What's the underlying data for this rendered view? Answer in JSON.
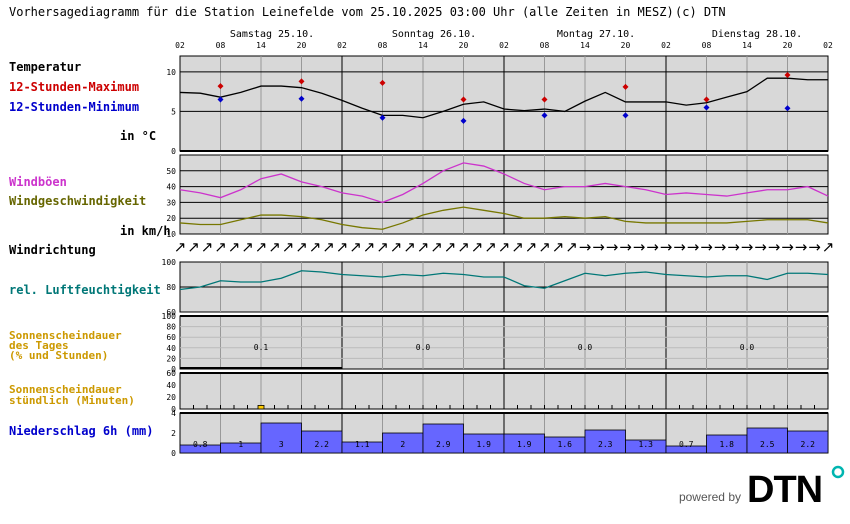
{
  "header": {
    "title": "Vorhersagediagramm für die Station Leinefelde vom 25.10.2025 03:00 Uhr (alle Zeiten in MESZ)",
    "copyright": "(c) DTN"
  },
  "days": [
    "Samstag 25.10.",
    "Sonntag 26.10.",
    "Montag 27.10.",
    "Dienstag 28.10."
  ],
  "hour_ticks": [
    "02",
    "08",
    "14",
    "20",
    "02",
    "08",
    "14",
    "20",
    "02",
    "08",
    "14",
    "20",
    "02",
    "08",
    "14",
    "20",
    "02"
  ],
  "labels": {
    "temperatur": "Temperatur",
    "tmax": "12-Stunden-Maximum",
    "tmin": "12-Stunden-Minimum",
    "temp_unit": "in °C",
    "windboeen": "Windböen",
    "windgeschw": "Windgeschwindigkeit",
    "wind_unit": "in km/h",
    "windrichtung": "Windrichtung",
    "feuchte": "rel. Luftfeuchtigkeit",
    "sonne_tag_1": "Sonnenscheindauer",
    "sonne_tag_2": "des Tages",
    "sonne_tag_3": "(% und Stunden)",
    "sonne_std_1": "Sonnenscheindauer",
    "sonne_std_2": "stündlich (Minuten)",
    "niederschlag": "Niederschlag 6h (mm)"
  },
  "footer": {
    "powered_by": "powered by",
    "brand": "DTN"
  },
  "colors": {
    "panel_bg": "#d8d8d8",
    "temp_line": "#000000",
    "max_marker": "#cc0000",
    "min_marker": "#0000cc",
    "gust_line": "#cc33cc",
    "wind_line": "#777700",
    "humidity_line": "#007777",
    "precip_bar": "#6666ff",
    "sun_bar": "#ffcc00",
    "label_blue": "#0000cc",
    "label_red": "#cc0000",
    "label_magenta": "#cc33cc",
    "label_olive": "#666600",
    "label_teal": "#007777",
    "label_orange": "#cc9900"
  },
  "chart_data": [
    {
      "name": "temperature",
      "type": "line",
      "x_unit": "hours since 25.10. 02:00",
      "ylim": [
        0,
        12
      ],
      "yticks": [
        0,
        5,
        10
      ],
      "x": [
        0,
        3,
        6,
        9,
        12,
        15,
        18,
        21,
        24,
        27,
        30,
        33,
        36,
        39,
        42,
        45,
        48,
        51,
        54,
        57,
        60,
        63,
        66,
        69,
        72,
        75,
        78,
        81,
        84,
        87,
        90,
        93,
        96
      ],
      "values": [
        7.4,
        7.3,
        6.8,
        7.4,
        8.2,
        8.2,
        8.0,
        7.3,
        6.4,
        5.4,
        4.5,
        4.5,
        4.2,
        5.0,
        5.9,
        6.2,
        5.3,
        5.1,
        5.3,
        5.0,
        6.3,
        7.4,
        6.2,
        6.2,
        6.2,
        5.8,
        6.1,
        6.8,
        7.5,
        9.2,
        9.2,
        9.0,
        9.0
      ],
      "max": {
        "x": [
          6,
          18,
          30,
          42,
          54,
          66,
          78,
          90
        ],
        "values": [
          8.2,
          8.8,
          8.6,
          6.5,
          6.5,
          8.1,
          6.5,
          9.6
        ]
      },
      "min": {
        "x": [
          6,
          18,
          30,
          42,
          54,
          66,
          78,
          90
        ],
        "values": [
          6.5,
          6.6,
          4.2,
          3.8,
          4.5,
          4.5,
          5.5,
          5.4
        ]
      }
    },
    {
      "name": "wind",
      "type": "line",
      "ylim": [
        10,
        60
      ],
      "yticks": [
        10,
        20,
        30,
        40,
        50
      ],
      "x": [
        0,
        3,
        6,
        9,
        12,
        15,
        18,
        21,
        24,
        27,
        30,
        33,
        36,
        39,
        42,
        45,
        48,
        51,
        54,
        57,
        60,
        63,
        66,
        69,
        72,
        75,
        78,
        81,
        84,
        87,
        90,
        93,
        96
      ],
      "series": [
        {
          "name": "Windböen",
          "values": [
            38,
            36,
            33,
            38,
            45,
            48,
            43,
            40,
            36,
            34,
            30,
            35,
            42,
            50,
            55,
            53,
            48,
            42,
            38,
            40,
            40,
            42,
            40,
            38,
            35,
            36,
            35,
            34,
            36,
            38,
            38,
            40,
            34
          ]
        },
        {
          "name": "Windgeschwindigkeit",
          "values": [
            17,
            16,
            16,
            19,
            22,
            22,
            21,
            19,
            16,
            14,
            13,
            17,
            22,
            25,
            27,
            25,
            23,
            20,
            20,
            21,
            20,
            21,
            18,
            17,
            17,
            17,
            17,
            17,
            18,
            19,
            19,
            19,
            17
          ]
        }
      ]
    },
    {
      "name": "wind_direction",
      "type": "table",
      "x": [
        0,
        2,
        4,
        6,
        8,
        10,
        12,
        14,
        16,
        18,
        20,
        22,
        24,
        26,
        28,
        30,
        32,
        34,
        36,
        38,
        40,
        42,
        44,
        46,
        48,
        50,
        52,
        54,
        56,
        58,
        60,
        62,
        64,
        66,
        68,
        70,
        72,
        74,
        76,
        78,
        80,
        82,
        84,
        86,
        88,
        90,
        92,
        94,
        96
      ],
      "symbols": [
        "↗",
        "↗",
        "↗",
        "↗",
        "↗",
        "↗",
        "↗",
        "↗",
        "↗",
        "↗",
        "↗",
        "↗",
        "↗",
        "↗",
        "↗",
        "↗",
        "↗",
        "↗",
        "↗",
        "↗",
        "↗",
        "↗",
        "↗",
        "↗",
        "↗",
        "↗",
        "↗",
        "↗",
        "↗",
        "↗",
        "→",
        "→",
        "→",
        "→",
        "→",
        "→",
        "→",
        "→",
        "→",
        "→",
        "→",
        "→",
        "→",
        "→",
        "→",
        "→",
        "→",
        "→",
        "↗"
      ]
    },
    {
      "name": "humidity",
      "type": "line",
      "ylim": [
        60,
        100
      ],
      "yticks": [
        60,
        80,
        100
      ],
      "x": [
        0,
        3,
        6,
        9,
        12,
        15,
        18,
        21,
        24,
        27,
        30,
        33,
        36,
        39,
        42,
        45,
        48,
        51,
        54,
        57,
        60,
        63,
        66,
        69,
        72,
        75,
        78,
        81,
        84,
        87,
        90,
        93,
        96
      ],
      "values": [
        78,
        80,
        85,
        84,
        84,
        87,
        93,
        92,
        90,
        89,
        88,
        90,
        89,
        91,
        90,
        88,
        88,
        81,
        79,
        85,
        91,
        89,
        91,
        92,
        90,
        89,
        88,
        89,
        89,
        86,
        91,
        91,
        90
      ]
    },
    {
      "name": "sunshine_daily",
      "type": "bar",
      "ylim": [
        0,
        100
      ],
      "yticks": [
        0,
        20,
        40,
        60,
        80,
        100
      ],
      "categories": [
        "Samstag 25.10.",
        "Sonntag 26.10.",
        "Montag 27.10.",
        "Dienstag 28.10."
      ],
      "values": [
        0.1,
        0.0,
        0.0,
        0.0
      ],
      "value_labels": [
        "0.1",
        "0.0",
        "0.0",
        "0.0"
      ]
    },
    {
      "name": "sunshine_hourly",
      "type": "bar",
      "ylim": [
        0,
        60
      ],
      "yticks": [
        0,
        20,
        40,
        60
      ],
      "x": [
        12
      ],
      "values": [
        6
      ]
    },
    {
      "name": "precipitation_6h",
      "type": "bar",
      "ylim": [
        0,
        4
      ],
      "yticks": [
        0,
        2,
        4
      ],
      "x_start": [
        0,
        6,
        12,
        18,
        24,
        30,
        36,
        42,
        48,
        54,
        60,
        66,
        72,
        78,
        84,
        90
      ],
      "values": [
        0.8,
        1.0,
        3.0,
        2.2,
        1.1,
        2.0,
        2.9,
        1.9,
        1.9,
        1.6,
        2.3,
        1.3,
        0.7,
        1.8,
        2.5,
        2.2
      ],
      "value_labels": [
        "0.8",
        "1",
        "3",
        "2.2",
        "1.1",
        "2",
        "2.9",
        "1.9",
        "1.9",
        "1.6",
        "2.3",
        "1.3",
        "0.7",
        "1.8",
        "2.5",
        "2.2"
      ]
    }
  ]
}
